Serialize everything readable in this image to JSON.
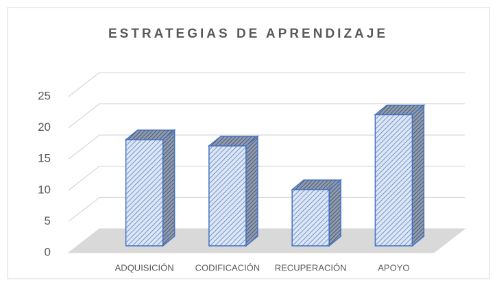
{
  "chart_data": {
    "type": "bar3d",
    "title": "ESTRATEGIAS DE APRENDIZAJE",
    "categories": [
      "ADQUISICIÓN",
      "CODIFICACIÓN",
      "RECUPERACIÓN",
      "APOYO"
    ],
    "values": [
      17,
      16,
      9,
      21
    ],
    "color": "#4472c4",
    "ylim": [
      0,
      25
    ],
    "yticks": [
      0,
      5,
      10,
      15,
      20,
      25
    ],
    "grid": true
  }
}
